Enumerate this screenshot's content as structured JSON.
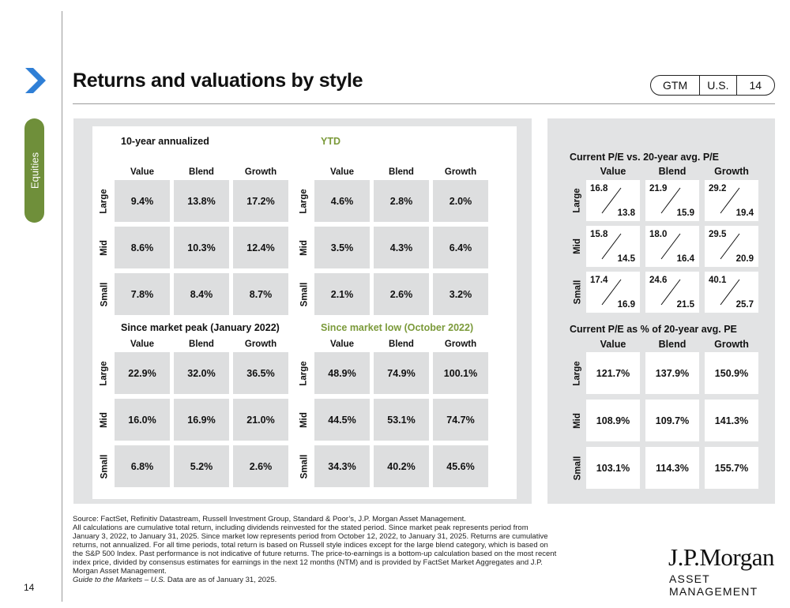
{
  "sidebar": {
    "tab_label": "Equities",
    "page_number": "14"
  },
  "header": {
    "title": "Returns and valuations by style",
    "badge": [
      "GTM",
      "U.S.",
      "14"
    ]
  },
  "columns": [
    "Value",
    "Blend",
    "Growth"
  ],
  "rows": [
    "Large",
    "Mid",
    "Small"
  ],
  "returns": [
    {
      "title": "10-year annualized",
      "values": [
        [
          "9.4%",
          "13.8%",
          "17.2%"
        ],
        [
          "8.6%",
          "10.3%",
          "12.4%"
        ],
        [
          "7.8%",
          "8.4%",
          "8.7%"
        ]
      ]
    },
    {
      "title": "YTD",
      "values": [
        [
          "4.6%",
          "2.8%",
          "2.0%"
        ],
        [
          "3.5%",
          "4.3%",
          "6.4%"
        ],
        [
          "2.1%",
          "2.6%",
          "3.2%"
        ]
      ]
    },
    {
      "title": "Since market peak (January 2022)",
      "values": [
        [
          "22.9%",
          "32.0%",
          "36.5%"
        ],
        [
          "16.0%",
          "16.9%",
          "21.0%"
        ],
        [
          "6.8%",
          "5.2%",
          "2.6%"
        ]
      ]
    },
    {
      "title": "Since market low (October 2022)",
      "values": [
        [
          "48.9%",
          "74.9%",
          "100.1%"
        ],
        [
          "44.5%",
          "53.1%",
          "74.7%"
        ],
        [
          "34.3%",
          "40.2%",
          "45.6%"
        ]
      ]
    }
  ],
  "pe_vs_avg": {
    "title": "Current P/E vs. 20-year avg. P/E",
    "current": [
      [
        "16.8",
        "21.9",
        "29.2"
      ],
      [
        "15.8",
        "18.0",
        "29.5"
      ],
      [
        "17.4",
        "24.6",
        "40.1"
      ]
    ],
    "average": [
      [
        "13.8",
        "15.9",
        "19.4"
      ],
      [
        "14.5",
        "16.4",
        "20.9"
      ],
      [
        "16.9",
        "21.5",
        "25.7"
      ]
    ]
  },
  "pe_pct": {
    "title": "Current P/E as % of 20-year avg. PE",
    "values": [
      [
        "121.7%",
        "137.9%",
        "150.9%"
      ],
      [
        "108.9%",
        "109.7%",
        "141.3%"
      ],
      [
        "103.1%",
        "114.3%",
        "155.7%"
      ]
    ]
  },
  "footer": {
    "source_lines": [
      "Source: FactSet, Refinitiv Datastream, Russell Investment Group, Standard & Poor’s, J.P. Morgan Asset Management.",
      "All calculations are cumulative total return, including dividends reinvested for the stated period. Since market peak represents period from",
      "January 3, 2022, to January 31, 2025. Since market low represents period from October 12, 2022, to January 31, 2025. Returns are cumulative",
      "returns, not annualized.  For all time periods, total return is based on Russell style indices except for the large blend category, which is based on",
      "the S&P 500 Index. Past performance is not indicative of future returns. The price-to-earnings is a bottom-up calculation based on the most recent",
      "index price, divided by consensus estimates for earnings in the next 12 months (NTM) and is provided by FactSet Market Aggregates and J.P.",
      "Morgan Asset Management."
    ],
    "guide_italic": "Guide to the Markets – U.S.",
    "guide_rest": " Data are as of January 31, 2025.",
    "logo_name": "J.P.Morgan",
    "logo_sub": "ASSET MANAGEMENT"
  },
  "colors": {
    "accent_green": "#6f8f3a",
    "chevron_blue": "#2f7fd6",
    "panel_gray": "#e2e3e4",
    "cell_gray": "#dddedf"
  }
}
